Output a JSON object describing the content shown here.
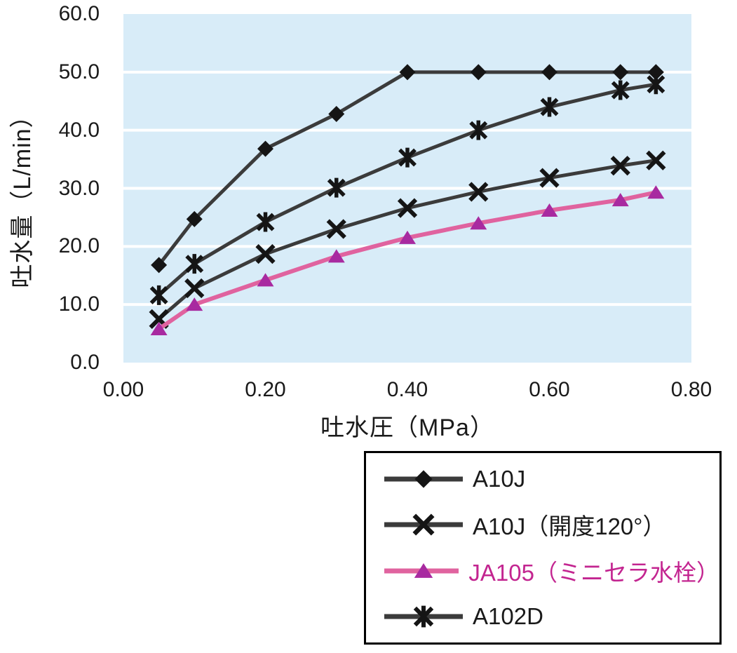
{
  "chart_data": {
    "type": "line",
    "title": "",
    "xlabel": "吐水圧（MPa）",
    "ylabel": "吐水量（L/min）",
    "x": [
      0.05,
      0.1,
      0.2,
      0.3,
      0.4,
      0.5,
      0.6,
      0.7,
      0.75
    ],
    "xlim": [
      0.0,
      0.8
    ],
    "ylim": [
      0.0,
      60.0
    ],
    "x_tick_labels": [
      "0.00",
      "0.20",
      "0.40",
      "0.60",
      "0.80"
    ],
    "y_tick_labels": [
      "60.0",
      "50.0",
      "40.0",
      "30.0",
      "20.0",
      "10.0",
      "0.0"
    ],
    "y_gridlines": [
      10,
      20,
      30,
      40,
      50
    ],
    "grid": "horizontal-only",
    "gridline_color": "#FFFFFF",
    "plot_bg": "#D8ECF8",
    "legend_position": "bottom-right, black-bordered box on white",
    "series": [
      {
        "name": "a10j",
        "label": "A10J",
        "marker": "diamond",
        "line_color": "#3B3B3B",
        "line_width": 5,
        "marker_color": "#151515",
        "label_color": "#1A1A1A",
        "values": [
          16.8,
          24.7,
          36.8,
          42.8,
          50.0,
          50.0,
          50.0,
          50.0,
          50.0
        ]
      },
      {
        "name": "a10j-kaido-120",
        "label": "A10J（開度120°）",
        "marker": "x",
        "line_color": "#3B3B3B",
        "line_width": 5,
        "marker_color": "#151515",
        "label_color": "#1A1A1A",
        "values": [
          7.5,
          12.8,
          18.7,
          23.0,
          26.6,
          29.4,
          31.8,
          33.9,
          34.8
        ]
      },
      {
        "name": "ja105-minicera",
        "label": "JA105（ミニセラ水栓）",
        "marker": "triangle",
        "line_color": "#E0639F",
        "line_width": 6,
        "marker_color": "#A82AA0",
        "label_color": "#C32590",
        "values": [
          5.8,
          10.0,
          14.2,
          18.3,
          21.5,
          24.0,
          26.2,
          28.0,
          29.3
        ]
      },
      {
        "name": "a102d",
        "label": "A102D",
        "marker": "asterisk",
        "line_color": "#3B3B3B",
        "line_width": 5,
        "marker_color": "#151515",
        "label_color": "#1A1A1A",
        "values": [
          11.6,
          17.0,
          24.2,
          30.1,
          35.3,
          40.0,
          44.0,
          46.9,
          47.9
        ]
      }
    ]
  }
}
